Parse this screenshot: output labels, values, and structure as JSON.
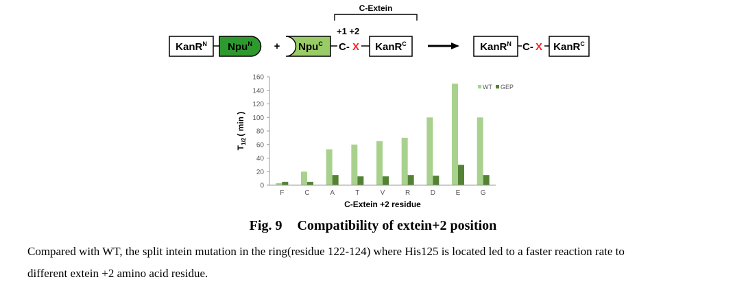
{
  "scheme": {
    "c_extein_label": "C-Extein",
    "positions_label": "+1 +2",
    "left": {
      "kanr_n": {
        "base": "KanR",
        "sup": "N"
      },
      "npu_n": {
        "base": "Npu",
        "sup": "N"
      },
      "plus": "+",
      "npu_c": {
        "base": "Npu",
        "sup": "C"
      },
      "link_c": "C-",
      "link_x": "X",
      "kanr_c": {
        "base": "KanR",
        "sup": "C"
      }
    },
    "right": {
      "kanr_n": {
        "base": "KanR",
        "sup": "N"
      },
      "link_c": "C-",
      "link_x": "X",
      "kanr_c": {
        "base": "KanR",
        "sup": "C"
      }
    },
    "colors": {
      "npu_n": "#2e9a2e",
      "npu_c": "#99cc66",
      "x": "#ff2020"
    }
  },
  "chart_data": {
    "type": "bar",
    "categories": [
      "F",
      "C",
      "A",
      "T",
      "V",
      "R",
      "D",
      "E",
      "G"
    ],
    "series": [
      {
        "name": "WT",
        "values": [
          3,
          20,
          53,
          60,
          65,
          70,
          100,
          150,
          100
        ],
        "color": "#a9d18e"
      },
      {
        "name": "GEP",
        "values": [
          5,
          5,
          15,
          13,
          13,
          15,
          14,
          30,
          15
        ],
        "color": "#548235"
      }
    ],
    "ylim": [
      0,
      160
    ],
    "yticks": [
      0,
      20,
      40,
      60,
      80,
      100,
      120,
      140,
      160
    ],
    "ylabel": {
      "base": "T",
      "sub": "1/2",
      "rest": "( min )"
    },
    "xlabel": "C-Extein +2 residue",
    "legend_position": "top-right",
    "grid": false
  },
  "caption": {
    "fig_label": "Fig. 9",
    "fig_title": "Compatibility of extein+2 position",
    "line1": "Compared with WT, the split intein mutation in the ring(residue 122-124) where His125 is located led to a faster reaction rate to",
    "line2": "different extein +2 amino acid residue."
  }
}
